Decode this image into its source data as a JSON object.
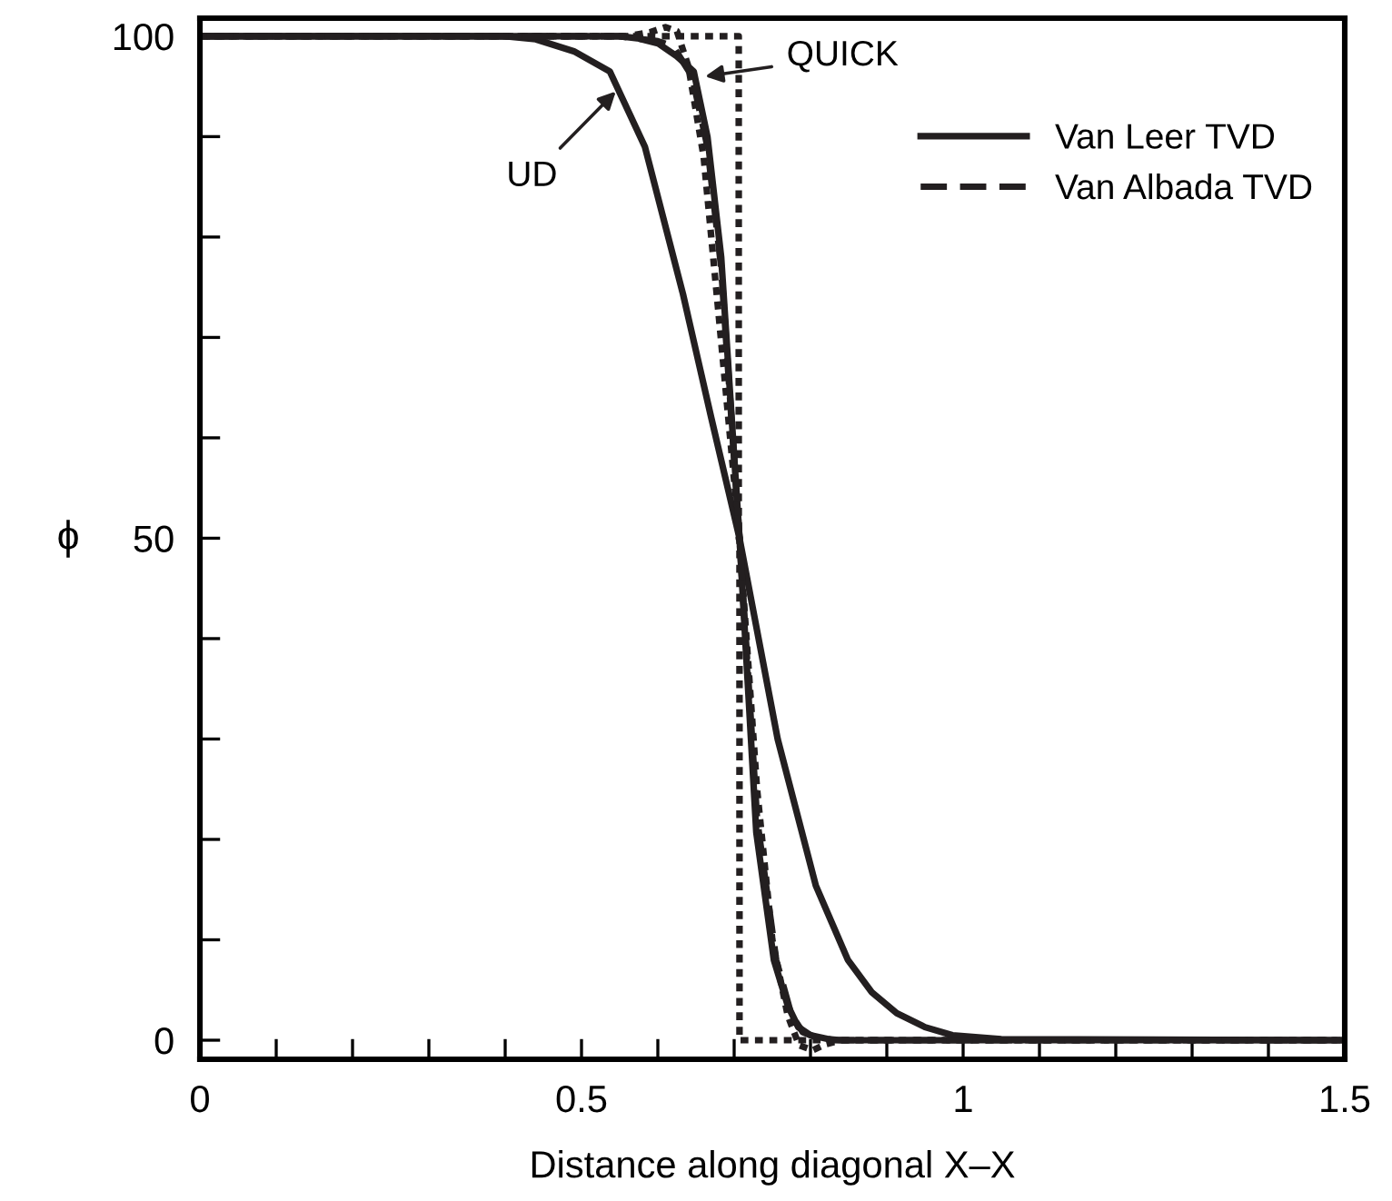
{
  "chart_data": {
    "type": "line",
    "xlabel": "Distance along diagonal X–X",
    "ylabel": "ϕ",
    "xlim": [
      0,
      1.5
    ],
    "ylim": [
      -1.9,
      101.8
    ],
    "xticks": [
      0,
      {
        "value": 0.1,
        "label": null
      },
      {
        "value": 0.2,
        "label": null
      },
      {
        "value": 0.3,
        "label": null
      },
      {
        "value": 0.4,
        "label": null
      },
      0.5,
      {
        "value": 0.6,
        "label": null
      },
      {
        "value": 0.7,
        "label": null
      },
      {
        "value": 0.8,
        "label": null
      },
      {
        "value": 0.9,
        "label": null
      },
      1,
      {
        "value": 1.1,
        "label": null
      },
      {
        "value": 1.2,
        "label": null
      },
      {
        "value": 1.3,
        "label": null
      },
      {
        "value": 1.4,
        "label": null
      },
      1.5
    ],
    "yticks": [
      0,
      {
        "value": 10,
        "label": null
      },
      {
        "value": 20,
        "label": null
      },
      {
        "value": 30,
        "label": null
      },
      {
        "value": 40,
        "label": null
      },
      50,
      {
        "value": 60,
        "label": null
      },
      {
        "value": 70,
        "label": null
      },
      {
        "value": 80,
        "label": null
      },
      {
        "value": 90,
        "label": null
      },
      100
    ],
    "grid": false,
    "legend": "top right",
    "marker": "none",
    "series": [
      {
        "color": "#231f20",
        "line_style": "dotted",
        "x": [
          0,
          0.706,
          0.706,
          0.707,
          0.707,
          1.5
        ],
        "values": [
          100,
          100,
          50,
          50,
          0,
          0
        ]
      },
      {
        "color": "#231f20",
        "line_style": "solid",
        "x": [
          0,
          0.4,
          0.44,
          0.49,
          0.537,
          0.583,
          0.633,
          0.67,
          0.707,
          0.757,
          0.807,
          0.849,
          0.88,
          0.913,
          0.95,
          0.986,
          1.05,
          1.5
        ],
        "values": [
          100,
          100,
          99.7,
          98.5,
          96.5,
          89,
          74.3,
          62,
          50,
          30,
          15.4,
          8,
          4.8,
          2.7,
          1.3,
          0.5,
          0.1,
          0
        ]
      },
      {
        "color": "#231f20",
        "line_style": "dotted",
        "x": [
          0.003,
          0.56,
          0.59,
          0.61,
          0.625,
          0.64,
          0.66,
          0.68,
          0.707,
          0.73,
          0.75,
          0.77,
          0.785,
          0.803,
          0.82,
          0.84,
          0.87,
          1.49
        ],
        "values": [
          100,
          100,
          100.4,
          100.9,
          100.5,
          97,
          88,
          72,
          50,
          25,
          10,
          2.5,
          -0.5,
          -1,
          -0.4,
          0,
          0,
          0
        ]
      },
      {
        "name": "Van Leer TVD",
        "color": "#231f20",
        "line_style": "solid",
        "x": [
          0.006,
          0.55,
          0.573,
          0.6,
          0.625,
          0.647,
          0.665,
          0.683,
          0.707,
          0.729,
          0.752,
          0.77,
          0.784,
          0.8,
          0.83,
          1.495
        ],
        "values": [
          100,
          100,
          99.8,
          99.3,
          98,
          96.5,
          90,
          78,
          50,
          20.7,
          8,
          3.5,
          1.3,
          0.5,
          0,
          0
        ]
      },
      {
        "name": "Van Albada TVD",
        "color": "#231f20",
        "line_style": "dashed",
        "x": [
          0.009,
          0.55,
          0.58,
          0.6,
          0.62,
          0.645,
          0.665,
          0.683,
          0.707,
          0.73,
          0.755,
          0.775,
          0.79,
          0.81,
          0.84,
          1.485
        ],
        "values": [
          100,
          100,
          99.7,
          99.5,
          99,
          96,
          89,
          77,
          50,
          22,
          8,
          2.5,
          0.8,
          0.2,
          0,
          0
        ]
      }
    ],
    "annotations": [
      {
        "text": "UD",
        "x": 0.545,
        "y": 94.5
      },
      {
        "text": "QUICK",
        "x": 0.662,
        "y": 96
      }
    ]
  }
}
